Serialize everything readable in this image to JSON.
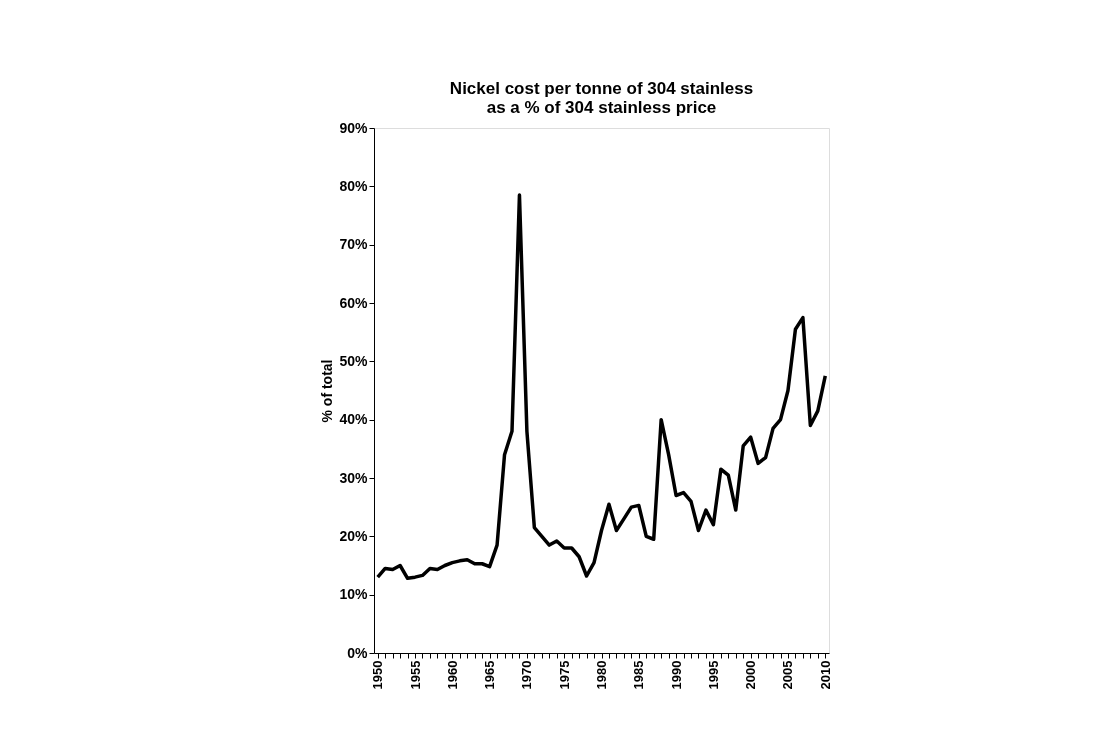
{
  "chart_data": {
    "type": "line",
    "title": "Nickel cost per tonne of 304 stainless\nas a % of 304 stainless price",
    "ylabel": "% of total",
    "x": [
      1950,
      1951,
      1952,
      1953,
      1954,
      1955,
      1956,
      1957,
      1958,
      1959,
      1960,
      1961,
      1962,
      1963,
      1964,
      1965,
      1966,
      1967,
      1968,
      1969,
      1970,
      1971,
      1972,
      1973,
      1974,
      1975,
      1976,
      1977,
      1978,
      1979,
      1980,
      1981,
      1982,
      1983,
      1984,
      1985,
      1986,
      1987,
      1988,
      1989,
      1990,
      1991,
      1992,
      1993,
      1994,
      1995,
      1996,
      1997,
      1998,
      1999,
      2000,
      2001,
      2002,
      2003,
      2004,
      2005,
      2006,
      2007,
      2008,
      2009,
      2010
    ],
    "series": [
      {
        "color": "#000000",
        "values": [
          13,
          14.5,
          14.3,
          15,
          12.8,
          13,
          13.3,
          14.5,
          14.3,
          15,
          15.5,
          15.8,
          16,
          15.3,
          15.3,
          14.8,
          18.5,
          34,
          38,
          78.5,
          38,
          21.5,
          20,
          18.5,
          19.2,
          18,
          18,
          16.5,
          13.2,
          15.5,
          21,
          25.5,
          21,
          23,
          25,
          25.3,
          20,
          19.5,
          40,
          34,
          27,
          27.5,
          26,
          21,
          24.5,
          22,
          31.5,
          30.5,
          24.5,
          35.5,
          37,
          32.5,
          33.5,
          38.5,
          40,
          45,
          55.5,
          57.5,
          39,
          41.5,
          47.5
        ]
      }
    ],
    "xlim": [
      1949.5,
      2010.5
    ],
    "xticks": [
      1950,
      {
        "value": 1951,
        "label": null
      },
      {
        "value": 1952,
        "label": null
      },
      {
        "value": 1953,
        "label": null
      },
      {
        "value": 1954,
        "label": null
      },
      1955,
      {
        "value": 1956,
        "label": null
      },
      {
        "value": 1957,
        "label": null
      },
      {
        "value": 1958,
        "label": null
      },
      {
        "value": 1959,
        "label": null
      },
      1960,
      {
        "value": 1961,
        "label": null
      },
      {
        "value": 1962,
        "label": null
      },
      {
        "value": 1963,
        "label": null
      },
      {
        "value": 1964,
        "label": null
      },
      1965,
      {
        "value": 1966,
        "label": null
      },
      {
        "value": 1967,
        "label": null
      },
      {
        "value": 1968,
        "label": null
      },
      {
        "value": 1969,
        "label": null
      },
      1970,
      {
        "value": 1971,
        "label": null
      },
      {
        "value": 1972,
        "label": null
      },
      {
        "value": 1973,
        "label": null
      },
      {
        "value": 1974,
        "label": null
      },
      1975,
      {
        "value": 1976,
        "label": null
      },
      {
        "value": 1977,
        "label": null
      },
      {
        "value": 1978,
        "label": null
      },
      {
        "value": 1979,
        "label": null
      },
      1980,
      {
        "value": 1981,
        "label": null
      },
      {
        "value": 1982,
        "label": null
      },
      {
        "value": 1983,
        "label": null
      },
      {
        "value": 1984,
        "label": null
      },
      1985,
      {
        "value": 1986,
        "label": null
      },
      {
        "value": 1987,
        "label": null
      },
      {
        "value": 1988,
        "label": null
      },
      {
        "value": 1989,
        "label": null
      },
      1990,
      {
        "value": 1991,
        "label": null
      },
      {
        "value": 1992,
        "label": null
      },
      {
        "value": 1993,
        "label": null
      },
      {
        "value": 1994,
        "label": null
      },
      1995,
      {
        "value": 1996,
        "label": null
      },
      {
        "value": 1997,
        "label": null
      },
      {
        "value": 1998,
        "label": null
      },
      {
        "value": 1999,
        "label": null
      },
      2000,
      {
        "value": 2001,
        "label": null
      },
      {
        "value": 2002,
        "label": null
      },
      {
        "value": 2003,
        "label": null
      },
      {
        "value": 2004,
        "label": null
      },
      2005,
      {
        "value": 2006,
        "label": null
      },
      {
        "value": 2007,
        "label": null
      },
      {
        "value": 2008,
        "label": null
      },
      {
        "value": 2009,
        "label": null
      },
      2010
    ],
    "ylim": [
      0,
      90
    ],
    "yticks": [
      {
        "value": 0,
        "label": "0%"
      },
      {
        "value": 10,
        "label": "10%"
      },
      {
        "value": 20,
        "label": "20%"
      },
      {
        "value": 30,
        "label": "30%"
      },
      {
        "value": 40,
        "label": "40%"
      },
      {
        "value": 50,
        "label": "50%"
      },
      {
        "value": 60,
        "label": "60%"
      },
      {
        "value": 70,
        "label": "70%"
      },
      {
        "value": 80,
        "label": "80%"
      },
      {
        "value": 90,
        "label": "90%"
      }
    ],
    "grid": false,
    "legend": false,
    "marker": "none",
    "line_style": "solid"
  }
}
